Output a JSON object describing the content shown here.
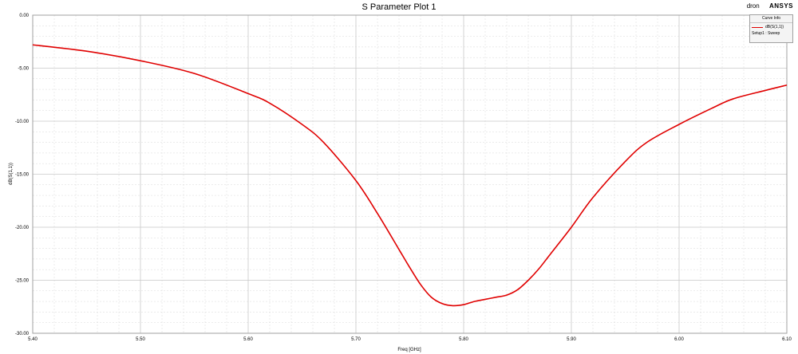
{
  "header": {
    "title": "S Parameter Plot 1",
    "project": "dron",
    "company": "ANSYS"
  },
  "legend": {
    "heading": "Curve Info",
    "trace_label": "dB(S(1,1))",
    "setup": "Setup1 : Sweep"
  },
  "colors": {
    "trace": "#e00000",
    "grid": "#d8d8d8"
  },
  "chart_data": {
    "type": "line",
    "title": "S Parameter Plot 1",
    "xlabel": "Freq [GHz]",
    "ylabel": "dB(S(1,1))",
    "xlim": [
      5.4,
      6.1
    ],
    "ylim": [
      -30,
      0
    ],
    "xticks": [
      "5.40",
      "5.50",
      "5.60",
      "5.70",
      "5.80",
      "5.90",
      "6.00",
      "6.10"
    ],
    "yticks": [
      "0.00",
      "-5.00",
      "-10.00",
      "-15.00",
      "-20.00",
      "-25.00",
      "-30.00"
    ],
    "grid": true,
    "legend_position": "top-right",
    "series": [
      {
        "name": "dB(S(1,1))",
        "x": [
          5.4,
          5.45,
          5.5,
          5.55,
          5.6,
          5.62,
          5.65,
          5.67,
          5.7,
          5.72,
          5.74,
          5.75,
          5.76,
          5.77,
          5.78,
          5.79,
          5.8,
          5.81,
          5.82,
          5.83,
          5.84,
          5.85,
          5.86,
          5.87,
          5.88,
          5.9,
          5.92,
          5.95,
          5.97,
          6.0,
          6.03,
          6.05,
          6.08,
          6.1
        ],
        "y": [
          -2.8,
          -3.4,
          -4.3,
          -5.5,
          -7.4,
          -8.3,
          -10.3,
          -12.0,
          -15.6,
          -18.7,
          -22.1,
          -23.8,
          -25.4,
          -26.6,
          -27.2,
          -27.4,
          -27.3,
          -27.0,
          -26.8,
          -26.6,
          -26.4,
          -25.9,
          -25.0,
          -23.9,
          -22.6,
          -20.0,
          -17.2,
          -13.8,
          -12.0,
          -10.3,
          -8.8,
          -7.9,
          -7.1,
          -6.6
        ]
      }
    ]
  }
}
